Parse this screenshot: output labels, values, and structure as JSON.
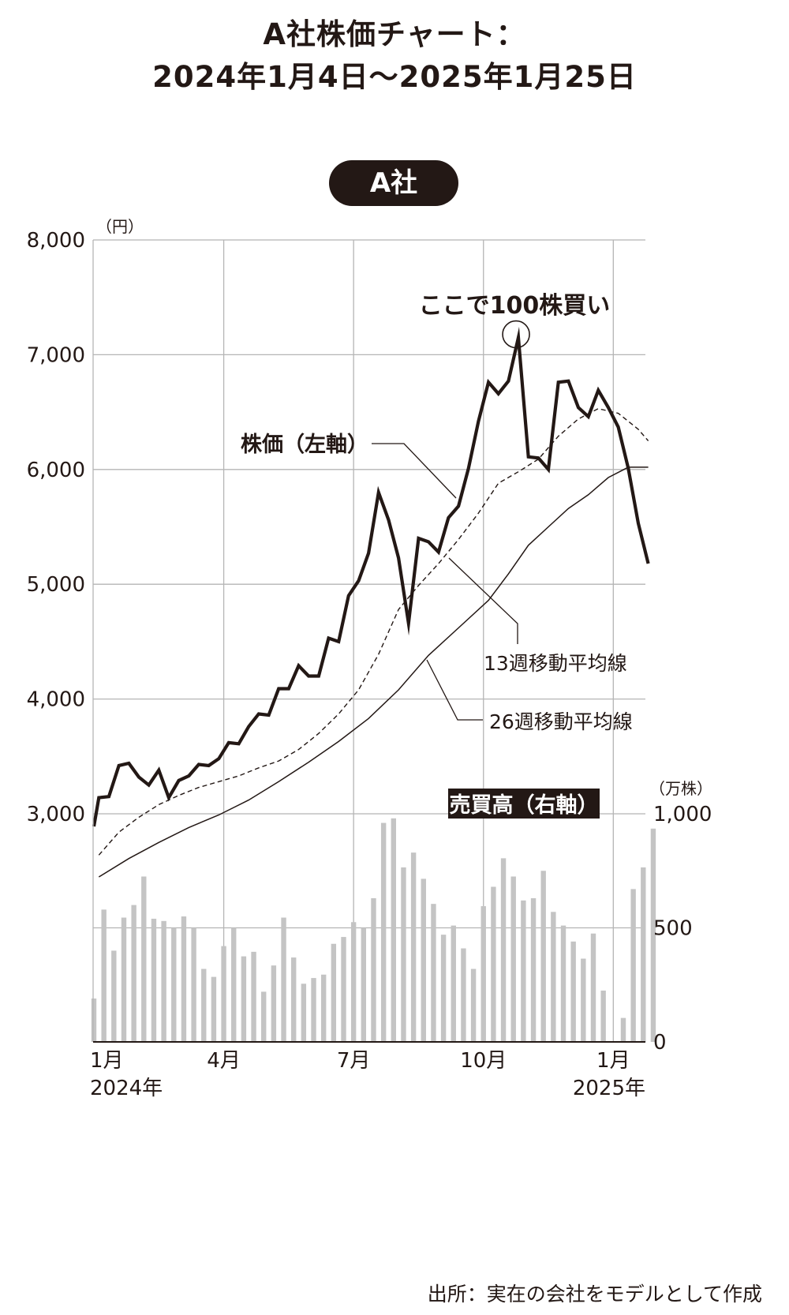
{
  "title_line1": "A社株価チャート：",
  "title_line2": "2024年1月4日～2025年1月25日",
  "company_badge": "A社",
  "source_note": "出所：実在の会社をモデルとして作成",
  "chart_data": {
    "type": "line",
    "left_unit": "（円）",
    "right_unit": "（万株）",
    "y_left_ticks": [
      "8,000",
      "7,000",
      "6,000",
      "5,000",
      "4,000",
      "3,000"
    ],
    "y_left_values": [
      8000,
      7000,
      6000,
      5000,
      4000,
      3000
    ],
    "y_right_ticks": [
      "1,000",
      "500",
      "0"
    ],
    "y_right_values": [
      1000,
      500,
      0
    ],
    "ylim_left": [
      3000,
      8000
    ],
    "ylim_right": [
      0,
      1000
    ],
    "x_ticks": [
      {
        "label": "1月",
        "sub": "2024年",
        "week": 0
      },
      {
        "label": "4月",
        "sub": "",
        "week": 13
      },
      {
        "label": "7月",
        "sub": "",
        "week": 26
      },
      {
        "label": "10月",
        "sub": "",
        "week": 39
      },
      {
        "label": "1月",
        "sub": "2025年",
        "week": 52
      }
    ],
    "grid": true,
    "series": [
      {
        "name": "株価（左軸）",
        "style": "solid-thick",
        "points": [
          [
            0,
            2890
          ],
          [
            0.5,
            3140
          ],
          [
            1.5,
            3150
          ],
          [
            2.5,
            3420
          ],
          [
            3.5,
            3440
          ],
          [
            4.5,
            3320
          ],
          [
            5.5,
            3250
          ],
          [
            6.5,
            3380
          ],
          [
            7.5,
            3140
          ],
          [
            8.5,
            3290
          ],
          [
            9.5,
            3330
          ],
          [
            10.5,
            3430
          ],
          [
            11.5,
            3420
          ],
          [
            12.5,
            3480
          ],
          [
            13.5,
            3620
          ],
          [
            14.5,
            3610
          ],
          [
            15.5,
            3760
          ],
          [
            16.5,
            3870
          ],
          [
            17.5,
            3860
          ],
          [
            18.5,
            4090
          ],
          [
            19.5,
            4090
          ],
          [
            20.5,
            4290
          ],
          [
            21.5,
            4200
          ],
          [
            22.5,
            4200
          ],
          [
            23.5,
            4530
          ],
          [
            24.5,
            4500
          ],
          [
            25.5,
            4900
          ],
          [
            26.5,
            5030
          ],
          [
            27.5,
            5270
          ],
          [
            28.5,
            5800
          ],
          [
            29.5,
            5560
          ],
          [
            30.5,
            5230
          ],
          [
            31.5,
            4660
          ],
          [
            32.5,
            5400
          ],
          [
            33.5,
            5370
          ],
          [
            34.5,
            5280
          ],
          [
            35.5,
            5580
          ],
          [
            36.5,
            5680
          ],
          [
            37.5,
            6010
          ],
          [
            38.5,
            6420
          ],
          [
            39.5,
            6760
          ],
          [
            40.5,
            6660
          ],
          [
            41.5,
            6770
          ],
          [
            42.5,
            7150
          ],
          [
            43.5,
            6110
          ],
          [
            44.5,
            6100
          ],
          [
            45.5,
            6000
          ],
          [
            46.5,
            6760
          ],
          [
            47.5,
            6770
          ],
          [
            48.5,
            6540
          ],
          [
            49.5,
            6460
          ],
          [
            50.5,
            6690
          ],
          [
            51.5,
            6540
          ],
          [
            52.5,
            6370
          ],
          [
            53.5,
            6010
          ],
          [
            54.5,
            5530
          ],
          [
            55.5,
            5180
          ]
        ]
      },
      {
        "name": "13週移動平均線",
        "style": "dashed",
        "points": [
          [
            0.5,
            2640
          ],
          [
            2.5,
            2840
          ],
          [
            4.5,
            2970
          ],
          [
            6.5,
            3080
          ],
          [
            8.5,
            3160
          ],
          [
            10.5,
            3230
          ],
          [
            12.5,
            3280
          ],
          [
            14.5,
            3330
          ],
          [
            16.5,
            3400
          ],
          [
            18.5,
            3460
          ],
          [
            20.5,
            3560
          ],
          [
            22.5,
            3700
          ],
          [
            24.5,
            3870
          ],
          [
            26.5,
            4080
          ],
          [
            28.5,
            4390
          ],
          [
            30.5,
            4780
          ],
          [
            32.5,
            4990
          ],
          [
            34.5,
            5180
          ],
          [
            36.5,
            5390
          ],
          [
            38.5,
            5620
          ],
          [
            40.5,
            5880
          ],
          [
            42.5,
            5980
          ],
          [
            44.5,
            6090
          ],
          [
            46.5,
            6290
          ],
          [
            48.5,
            6440
          ],
          [
            50.5,
            6530
          ],
          [
            52.5,
            6490
          ],
          [
            54.5,
            6350
          ],
          [
            55.5,
            6250
          ]
        ]
      },
      {
        "name": "26週移動平均線",
        "style": "solid-thin",
        "points": [
          [
            0.5,
            2450
          ],
          [
            3.5,
            2610
          ],
          [
            6.5,
            2750
          ],
          [
            9.5,
            2880
          ],
          [
            12.5,
            2990
          ],
          [
            15.5,
            3120
          ],
          [
            18.5,
            3280
          ],
          [
            21.5,
            3450
          ],
          [
            24.5,
            3630
          ],
          [
            27.5,
            3830
          ],
          [
            30.5,
            4080
          ],
          [
            33.5,
            4380
          ],
          [
            36.5,
            4620
          ],
          [
            39.5,
            4860
          ],
          [
            41.5,
            5090
          ],
          [
            43.5,
            5340
          ],
          [
            45.5,
            5500
          ],
          [
            47.5,
            5660
          ],
          [
            49.5,
            5780
          ],
          [
            51.5,
            5930
          ],
          [
            53.5,
            6020
          ],
          [
            55.5,
            6020
          ]
        ]
      },
      {
        "name": "売買高（右軸）",
        "type": "bar",
        "values": [
          190,
          580,
          400,
          545,
          600,
          725,
          540,
          530,
          500,
          550,
          500,
          320,
          285,
          420,
          500,
          375,
          395,
          220,
          335,
          545,
          370,
          255,
          280,
          295,
          430,
          460,
          525,
          500,
          630,
          960,
          980,
          765,
          830,
          715,
          605,
          470,
          510,
          410,
          320,
          595,
          680,
          805,
          725,
          620,
          630,
          750,
          570,
          510,
          440,
          365,
          475,
          225,
          0,
          105,
          670,
          765,
          935
        ]
      }
    ],
    "annotations": [
      {
        "text": "ここで100株買い",
        "target_week": 42.5
      },
      {
        "text": "株価（左軸）",
        "target": "株価（左軸）"
      },
      {
        "text": "13週移動平均線",
        "target": "13週移動平均線"
      },
      {
        "text": "26週移動平均線",
        "target": "26週移動平均線"
      },
      {
        "text": "売買高（右軸）",
        "target": "売買高（右軸）"
      }
    ]
  }
}
